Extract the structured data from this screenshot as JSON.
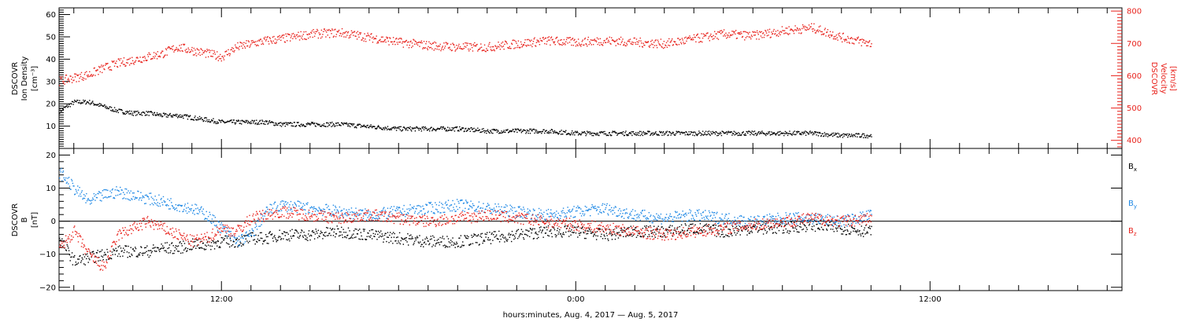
{
  "chart_data": [
    {
      "type": "scatter",
      "panel": "top",
      "ylabel_left": [
        "DSCOVR",
        "Ion Density",
        "[cm⁻³]"
      ],
      "ylabel_right": [
        "DSCOVR",
        "Velocity",
        "[km/s]"
      ],
      "ylim_left": [
        0,
        63
      ],
      "ylim_right": [
        375,
        810
      ],
      "yticks_left": [
        "10",
        "20",
        "30",
        "40",
        "50",
        "60"
      ],
      "yticks_right": [
        "400",
        "500",
        "600",
        "700",
        "800"
      ],
      "xlim_hours": [
        6.5,
        42.5
      ],
      "series": [
        {
          "color": "#000000",
          "axis": "left",
          "x": [
            6.5,
            7,
            7.5,
            8,
            8.5,
            9,
            9.5,
            10,
            10.5,
            11,
            11.5,
            12,
            12.5,
            13,
            13.5,
            14,
            15,
            16,
            17,
            18,
            19,
            20,
            21,
            22,
            23,
            24,
            25,
            26,
            27,
            28,
            29,
            30,
            31,
            32,
            33,
            34
          ],
          "y": [
            17,
            21,
            21,
            19,
            17,
            16,
            16,
            15,
            15,
            14,
            13,
            12,
            12,
            12,
            12,
            11,
            11,
            11,
            10,
            9,
            9,
            9,
            8,
            8,
            8,
            7,
            7,
            7,
            7,
            7,
            7,
            7,
            7,
            7,
            6,
            6
          ]
        },
        {
          "color": "#e8231d",
          "axis": "right",
          "x": [
            6.5,
            7,
            7.5,
            8,
            8.5,
            9,
            9.5,
            10,
            10.5,
            11,
            11.5,
            12,
            12.5,
            13,
            13.5,
            14,
            15,
            16,
            17,
            18,
            19,
            20,
            21,
            22,
            23,
            24,
            25,
            26,
            27,
            28,
            29,
            30,
            31,
            32,
            33,
            34
          ],
          "y": [
            585,
            595,
            605,
            625,
            640,
            650,
            660,
            670,
            690,
            680,
            670,
            660,
            690,
            700,
            710,
            715,
            730,
            735,
            720,
            705,
            695,
            690,
            690,
            700,
            710,
            705,
            710,
            705,
            700,
            715,
            730,
            725,
            740,
            750,
            720,
            700
          ]
        }
      ]
    },
    {
      "type": "scatter",
      "panel": "bottom",
      "ylabel": [
        "DSCOVR",
        "B",
        "[nT]"
      ],
      "ylim": [
        -21,
        22
      ],
      "yticks": [
        "−20",
        "−10",
        "0",
        "10",
        "20"
      ],
      "xlim_hours": [
        6.5,
        42.5
      ],
      "xticks": [
        "12:00",
        "0:00",
        "12:00"
      ],
      "xlabel": "hours:minutes, Aug.  4, 2017 — Aug.  5, 2017",
      "series": [
        {
          "name": "Bx",
          "color": "#000000",
          "x": [
            6.5,
            7,
            7.5,
            8,
            8.5,
            9,
            9.5,
            10,
            10.5,
            11,
            11.5,
            12,
            12.5,
            13,
            13.5,
            14,
            15,
            16,
            17,
            18,
            19,
            20,
            21,
            22,
            23,
            24,
            25,
            26,
            27,
            28,
            29,
            30,
            31,
            32,
            33,
            34
          ],
          "y": [
            -5,
            -12,
            -11,
            -10,
            -9,
            -9,
            -9,
            -8,
            -8,
            -7,
            -7,
            -6,
            -6,
            -5,
            -5,
            -4,
            -4,
            -3,
            -4,
            -5,
            -6,
            -6,
            -5,
            -4,
            -3,
            -3,
            -4,
            -3,
            -3,
            -2,
            -3,
            -2,
            -2,
            -1,
            -2,
            -3
          ]
        },
        {
          "name": "By",
          "color": "#1e88e5",
          "x": [
            6.5,
            7,
            7.5,
            8,
            8.5,
            9,
            9.5,
            10,
            10.5,
            11,
            11.5,
            12,
            12.5,
            13,
            13.5,
            14,
            15,
            16,
            17,
            18,
            19,
            20,
            21,
            22,
            23,
            24,
            25,
            26,
            27,
            28,
            29,
            30,
            31,
            32,
            33,
            34
          ],
          "y": [
            15,
            10,
            6,
            8,
            9,
            8,
            7,
            6,
            5,
            4,
            2,
            -2,
            -6,
            -4,
            3,
            5,
            4,
            3,
            2,
            3,
            4,
            5,
            4,
            3,
            2,
            3,
            4,
            2,
            1,
            2,
            1,
            0,
            1,
            1,
            0,
            2
          ]
        },
        {
          "name": "Bz",
          "color": "#e8231d",
          "x": [
            6.5,
            7,
            7.5,
            8,
            8.5,
            9,
            9.5,
            10,
            10.5,
            11,
            11.5,
            12,
            12.5,
            13,
            13.5,
            14,
            15,
            16,
            17,
            18,
            19,
            20,
            21,
            22,
            23,
            24,
            25,
            26,
            27,
            28,
            29,
            30,
            31,
            32,
            33,
            34
          ],
          "y": [
            -8,
            -3,
            -10,
            -14,
            -4,
            -2,
            0,
            -2,
            -4,
            -6,
            -5,
            -2,
            -3,
            1,
            2,
            3,
            2,
            1,
            2,
            1,
            0,
            1,
            2,
            1,
            0,
            -1,
            -2,
            -3,
            -4,
            -3,
            -2,
            -1,
            0,
            1,
            0,
            1
          ]
        }
      ],
      "legend": [
        {
          "label": "B",
          "sub": "x",
          "color": "#000000"
        },
        {
          "label": "B",
          "sub": "y",
          "color": "#1e88e5"
        },
        {
          "label": "B",
          "sub": "z",
          "color": "#e8231d"
        }
      ]
    }
  ]
}
